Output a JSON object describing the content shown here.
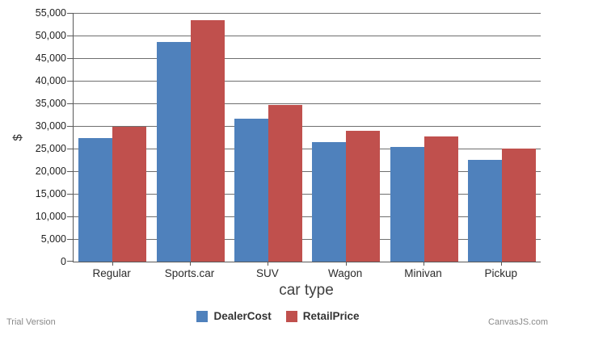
{
  "chart_data": {
    "type": "bar",
    "title": "",
    "xlabel": "car type",
    "ylabel": "$",
    "ylim": [
      0,
      55000
    ],
    "ytick_step": 5000,
    "grid": true,
    "legend_position": "bottom",
    "categories": [
      "Regular",
      "Sports.car",
      "SUV",
      "Wagon",
      "Minivan",
      "Pickup"
    ],
    "series": [
      {
        "name": "DealerCost",
        "color": "#4F81BC",
        "values": [
          27400,
          48500,
          31600,
          26500,
          25300,
          22500
        ]
      },
      {
        "name": "RetailPrice",
        "color": "#C0504D",
        "values": [
          29800,
          53400,
          34700,
          28900,
          27700,
          25000
        ]
      }
    ]
  },
  "branding": {
    "trial_label": "Trial Version",
    "watermark": "CanvasJS.com"
  },
  "colors": {
    "grid": "#6f6f6f",
    "axis": "#595959",
    "tick_text": "#1f1f1f",
    "muted_text": "#8a8a8a"
  }
}
